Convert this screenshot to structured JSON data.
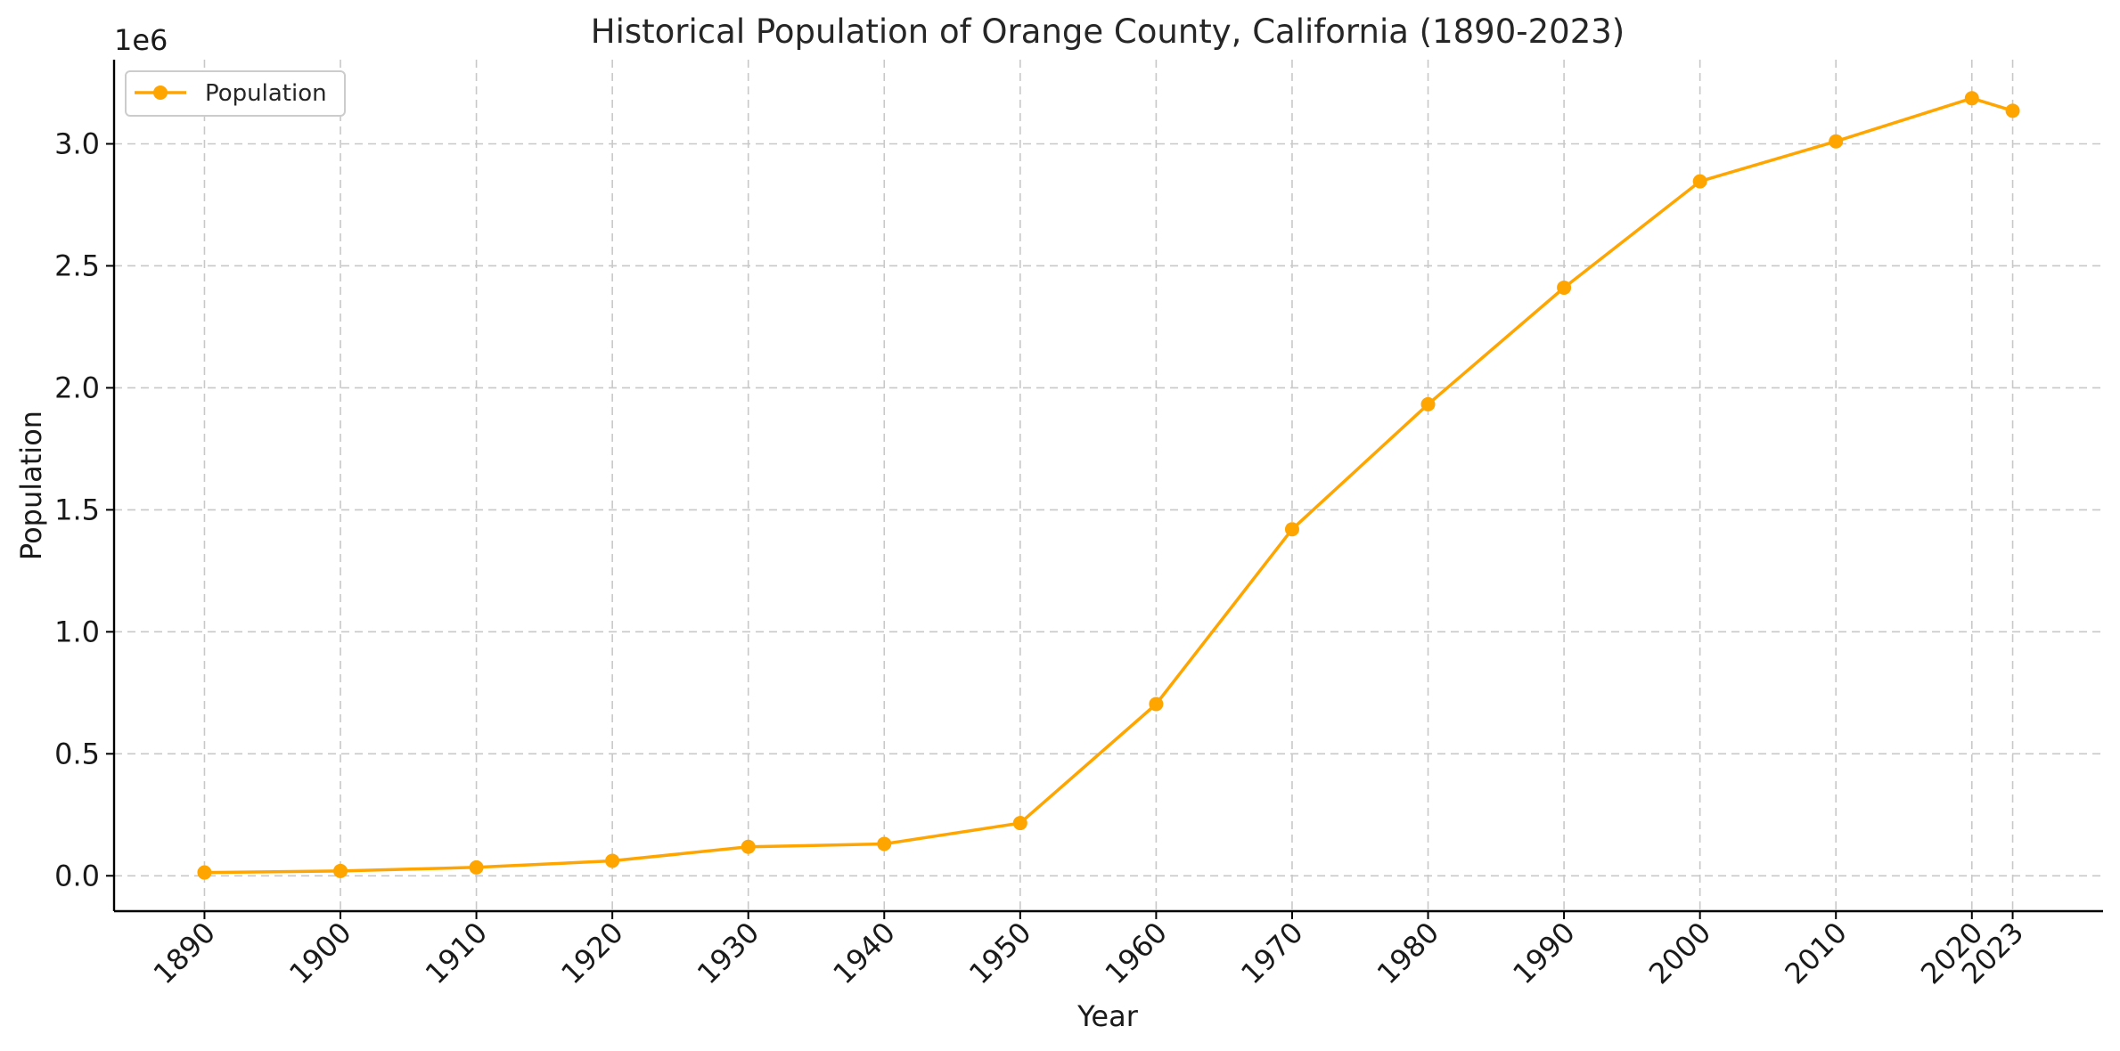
{
  "chart_data": {
    "type": "line",
    "title": "Historical Population of Orange County, California (1890-2023)",
    "xlabel": "Year",
    "ylabel": "Population",
    "y_offset_label": "1e6",
    "x_ticks": [
      "1890",
      "1900",
      "1910",
      "1920",
      "1930",
      "1940",
      "1950",
      "1960",
      "1970",
      "1980",
      "1990",
      "2000",
      "2010",
      "2020",
      "2023"
    ],
    "y_ticks": [
      "0.0",
      "0.5",
      "1.0",
      "1.5",
      "2.0",
      "2.5",
      "3.0"
    ],
    "x": [
      1890,
      1900,
      1910,
      1920,
      1930,
      1940,
      1950,
      1960,
      1970,
      1980,
      1990,
      2000,
      2010,
      2020,
      2023
    ],
    "series": [
      {
        "name": "Population",
        "color": "#FFA500",
        "marker": "circle",
        "values": [
          13589,
          19696,
          34436,
          61375,
          118674,
          130760,
          216224,
          703925,
          1420386,
          1932709,
          2410556,
          2846289,
          3010232,
          3186989,
          3135755
        ]
      }
    ],
    "xlim": [
      1883.35,
      2029.65
    ],
    "ylim": [
      -145000,
      3345000
    ],
    "grid": true,
    "legend_position": "top-left"
  }
}
